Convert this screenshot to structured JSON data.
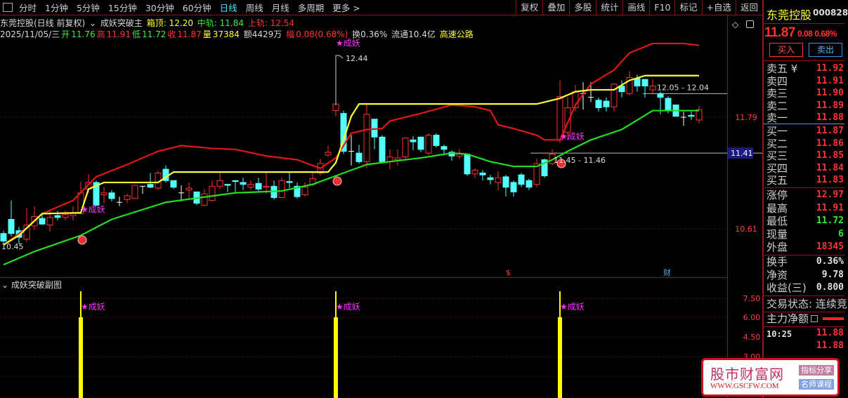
{
  "toolbar": {
    "periods": [
      "分时",
      "1分钟",
      "5分钟",
      "15分钟",
      "30分钟",
      "60分钟",
      "日线",
      "周线",
      "月线",
      "多周期",
      "更多 >"
    ],
    "active": "日线",
    "tools": [
      "复权",
      "叠加",
      "多股",
      "统计",
      "画线",
      "F10",
      "标记",
      "+自选",
      "返回"
    ]
  },
  "info": {
    "title": "东莞控股(日线 前复权)",
    "indicator": "成妖突破主",
    "box_top": "箱顶: 12.20",
    "mid": "中轨: 11.84",
    "upper": "上轨: 12.54",
    "date": "2025/11/05/三",
    "open_l": "开",
    "open": "11.76",
    "high_l": "高",
    "high": "11.91",
    "low_l": "低",
    "low": "11.72",
    "close_l": "收",
    "close": "11.87",
    "vol_l": "量",
    "vol": "37384",
    "amount": "额4429万",
    "chg_l": "幅",
    "chg": "0.08(0.68%)",
    "turnover": "换0.36%",
    "float": "流通10.4亿",
    "sector": "高速公路"
  },
  "sub": {
    "title": "成妖突破副图",
    "ticks": [
      "7.50",
      "6.00",
      "4.50",
      "3.00"
    ]
  },
  "axis": {
    "ticks": [
      "11.79",
      "10.61"
    ],
    "tag": "11.41"
  },
  "annotations": {
    "hi": "12.44",
    "lo": "10.45",
    "range1": "12.05 - 12.04",
    "range2": "11.45 - 11.46",
    "signal": "★成妖",
    "dollar": "$",
    "cai": "财"
  },
  "right": {
    "name": "东莞控股",
    "code": "000828",
    "price": "11.87",
    "chg": "0.08",
    "pct": "0.68%",
    "buy": "买入",
    "sell": "卖出",
    "asks": [
      {
        "l": "卖五 ¥",
        "v": "11.92"
      },
      {
        "l": "卖四",
        "v": "11.91"
      },
      {
        "l": "卖三",
        "v": "11.90"
      },
      {
        "l": "卖二",
        "v": "11.89"
      },
      {
        "l": "卖一",
        "v": "11.88"
      }
    ],
    "bids": [
      {
        "l": "买一",
        "v": "11.87"
      },
      {
        "l": "买二",
        "v": "11.86"
      },
      {
        "l": "买三",
        "v": "11.85"
      },
      {
        "l": "买四",
        "v": "11.84"
      },
      {
        "l": "买五",
        "v": "11.83"
      }
    ],
    "stats": [
      {
        "l": "涨停",
        "v": "12.97",
        "c": "#ff3333"
      },
      {
        "l": "最高",
        "v": "11.91",
        "c": "#ff3333"
      },
      {
        "l": "最低",
        "v": "11.72",
        "c": "#33ee33"
      },
      {
        "l": "现量",
        "v": "6",
        "c": "#33ee33"
      },
      {
        "l": "外盘",
        "v": "18345",
        "c": "#ff3333"
      }
    ],
    "fin": [
      {
        "l": "换手",
        "v": "0.36%"
      },
      {
        "l": "净资",
        "v": "9.78"
      },
      {
        "l": "收益(三)",
        "v": "0.800"
      }
    ],
    "status": "交易状态: 连续竞",
    "mainflow": "主力净额",
    "ticks": [
      {
        "t": "10:25",
        "v": "11.88"
      },
      {
        "t": "",
        "v": "11.88"
      }
    ]
  },
  "watermark": {
    "name": "股市财富网",
    "url": "WWW.GSCFW.COM",
    "b1": "指标分享",
    "b2": "名师课程"
  },
  "colors": {
    "up": "#ff3333",
    "down": "#54ffff",
    "upper": "#e01818",
    "mid": "#ffff33",
    "lower": "#22dd22"
  },
  "chart_data": {
    "type": "candlestick",
    "ohlc": [
      [
        10.56,
        10.48,
        10.59,
        10.45
      ],
      [
        10.71,
        10.56,
        10.91,
        10.53
      ],
      [
        10.59,
        10.52,
        10.63,
        10.45
      ],
      [
        10.5,
        10.65,
        10.83,
        10.47
      ],
      [
        10.64,
        10.74,
        10.85,
        10.6
      ],
      [
        10.72,
        10.66,
        10.76,
        10.65
      ],
      [
        10.65,
        10.73,
        10.8,
        10.58
      ],
      [
        10.75,
        10.73,
        10.8,
        10.7
      ],
      [
        10.73,
        10.76,
        10.8,
        10.7
      ],
      [
        10.75,
        10.77,
        10.85,
        10.7
      ],
      [
        10.77,
        10.99,
        11.11,
        10.77
      ],
      [
        11.03,
        11.1,
        11.19,
        10.99
      ],
      [
        11.1,
        10.86,
        11.12,
        10.85
      ],
      [
        10.97,
        10.99,
        11.05,
        10.88
      ],
      [
        10.99,
        10.93,
        11.02,
        10.9
      ],
      [
        10.89,
        10.89,
        10.95,
        10.85
      ],
      [
        10.92,
        10.96,
        10.98,
        10.88
      ],
      [
        10.93,
        11.07,
        11.07,
        10.93
      ],
      [
        11.06,
        11.06,
        11.06,
        10.98
      ],
      [
        11.08,
        11.05,
        11.2,
        11.04
      ],
      [
        11.04,
        11.2,
        11.22,
        11.02
      ],
      [
        11.24,
        11.12,
        11.28,
        11.1
      ],
      [
        11.12,
        11.05,
        11.12,
        11.03
      ],
      [
        10.99,
        10.99,
        11.07,
        10.9
      ],
      [
        11.02,
        11.04,
        11.1,
        10.92
      ],
      [
        11.0,
        10.88,
        11.0,
        10.86
      ],
      [
        10.86,
        10.98,
        11.03,
        10.85
      ],
      [
        10.91,
        11.06,
        11.12,
        10.9
      ],
      [
        11.06,
        11.12,
        11.2,
        11.03
      ],
      [
        11.08,
        11.07,
        11.08,
        11.0
      ],
      [
        11.12,
        11.11,
        11.12,
        11.0
      ],
      [
        11.1,
        11.08,
        11.15,
        11.02
      ],
      [
        11.05,
        11.08,
        11.12,
        11.02
      ],
      [
        11.09,
        11.03,
        11.15,
        11.0
      ],
      [
        11.05,
        11.06,
        11.2,
        10.98
      ],
      [
        11.06,
        10.94,
        11.12,
        10.92
      ],
      [
        10.94,
        11.12,
        11.15,
        10.94
      ],
      [
        11.11,
        11.1,
        11.2,
        11.04
      ],
      [
        11.06,
        10.95,
        11.1,
        10.93
      ],
      [
        10.97,
        11.05,
        11.1,
        10.95
      ],
      [
        11.08,
        11.14,
        11.2,
        11.06
      ],
      [
        11.2,
        11.3,
        11.35,
        11.17
      ],
      [
        11.39,
        11.42,
        11.49,
        11.37
      ],
      [
        11.86,
        11.93,
        12.44,
        11.8
      ],
      [
        11.83,
        11.43,
        11.86,
        11.4
      ],
      [
        11.43,
        11.43,
        11.6,
        11.28
      ],
      [
        11.41,
        11.32,
        11.5,
        11.3
      ],
      [
        11.32,
        11.82,
        11.92,
        11.25
      ],
      [
        11.77,
        11.58,
        11.77,
        11.45
      ],
      [
        11.58,
        11.32,
        11.6,
        11.3
      ],
      [
        11.32,
        11.37,
        11.45,
        11.24
      ],
      [
        11.34,
        11.36,
        11.45,
        11.28
      ],
      [
        11.37,
        11.57,
        11.57,
        11.35
      ],
      [
        11.55,
        11.53,
        11.59,
        11.44
      ],
      [
        11.58,
        11.45,
        11.58,
        11.42
      ],
      [
        11.41,
        11.6,
        11.62,
        11.39
      ],
      [
        11.6,
        11.49,
        11.62,
        11.47
      ],
      [
        11.48,
        11.45,
        11.5,
        11.4
      ],
      [
        11.42,
        11.38,
        11.44,
        11.33
      ],
      [
        11.38,
        11.41,
        11.45,
        11.35
      ],
      [
        11.4,
        11.19,
        11.4,
        11.17
      ],
      [
        11.19,
        11.23,
        11.25,
        11.15
      ],
      [
        11.2,
        11.18,
        11.23,
        11.12
      ],
      [
        11.15,
        11.13,
        11.18,
        11.08
      ],
      [
        11.1,
        11.15,
        11.22,
        11.02
      ],
      [
        11.16,
        11.05,
        11.18,
        10.95
      ],
      [
        11.1,
        11.0,
        11.12,
        10.95
      ],
      [
        11.18,
        11.08,
        11.2,
        11.05
      ],
      [
        11.12,
        11.05,
        11.14,
        11.02
      ],
      [
        11.08,
        11.3,
        11.35,
        11.05
      ],
      [
        11.34,
        11.17,
        11.35,
        11.15
      ],
      [
        11.3,
        11.4,
        11.45,
        11.28
      ],
      [
        11.55,
        12.01,
        12.18,
        11.52
      ],
      [
        11.63,
        11.89,
        12.0,
        11.55
      ],
      [
        11.89,
        12.06,
        12.13,
        11.85
      ],
      [
        12.04,
        12.04,
        12.16,
        11.87
      ],
      [
        12.0,
        12.0,
        12.16,
        11.95
      ],
      [
        11.97,
        11.89,
        12.0,
        11.85
      ],
      [
        11.96,
        11.9,
        12.0,
        11.85
      ],
      [
        11.9,
        12.14,
        12.15,
        11.85
      ],
      [
        12.12,
        12.06,
        12.18,
        12.0
      ],
      [
        12.04,
        12.21,
        12.28,
        12.02
      ],
      [
        12.2,
        12.12,
        12.24,
        12.06
      ],
      [
        12.19,
        12.12,
        12.19,
        12.0
      ],
      [
        12.08,
        12.12,
        12.19,
        12.03
      ],
      [
        12.04,
        12.0,
        12.06,
        11.82
      ],
      [
        11.99,
        11.86,
        12.01,
        11.83
      ],
      [
        11.92,
        11.8,
        11.92,
        11.8
      ],
      [
        11.79,
        11.79,
        11.85,
        11.7
      ],
      [
        11.81,
        11.8,
        11.85,
        11.76
      ],
      [
        11.76,
        11.87,
        11.91,
        11.72
      ]
    ],
    "upper": [
      [
        0,
        10.44
      ],
      [
        3,
        10.62
      ],
      [
        5,
        10.77
      ],
      [
        9,
        10.91
      ],
      [
        12,
        11.16
      ],
      [
        16,
        11.29
      ],
      [
        20,
        11.43
      ],
      [
        23,
        11.49
      ],
      [
        27,
        11.46
      ],
      [
        30,
        11.45
      ],
      [
        34,
        11.38
      ],
      [
        38,
        11.34
      ],
      [
        41,
        11.25
      ],
      [
        43,
        11.36
      ],
      [
        45,
        11.62
      ],
      [
        47,
        11.66
      ],
      [
        49,
        11.67
      ],
      [
        50,
        11.75
      ],
      [
        54,
        11.83
      ],
      [
        58,
        11.92
      ],
      [
        61,
        11.9
      ],
      [
        63,
        11.86
      ],
      [
        64,
        11.71
      ],
      [
        66,
        11.67
      ],
      [
        69,
        11.6
      ],
      [
        70,
        11.55
      ],
      [
        72,
        11.55
      ],
      [
        73,
        11.73
      ],
      [
        74,
        11.92
      ],
      [
        76,
        12.14
      ],
      [
        79,
        12.29
      ],
      [
        81,
        12.47
      ],
      [
        84,
        12.57
      ],
      [
        88,
        12.57
      ],
      [
        90,
        12.55
      ]
    ],
    "mid": [
      [
        0,
        10.44
      ],
      [
        2,
        10.54
      ],
      [
        5,
        10.77
      ],
      [
        10,
        10.78
      ],
      [
        11,
        11.03
      ],
      [
        13,
        11.1
      ],
      [
        20,
        11.1
      ],
      [
        22,
        11.21
      ],
      [
        42,
        11.21
      ],
      [
        43,
        11.31
      ],
      [
        45,
        11.8
      ],
      [
        46,
        11.93
      ],
      [
        69,
        11.93
      ],
      [
        72,
        11.99
      ],
      [
        74,
        12.06
      ],
      [
        76,
        12.08
      ],
      [
        79,
        12.08
      ],
      [
        81,
        12.18
      ],
      [
        83,
        12.23
      ],
      [
        90,
        12.23
      ]
    ],
    "lower": [
      [
        0,
        10.23
      ],
      [
        4,
        10.37
      ],
      [
        10,
        10.54
      ],
      [
        14,
        10.71
      ],
      [
        21,
        10.89
      ],
      [
        30,
        10.99
      ],
      [
        36,
        11.01
      ],
      [
        40,
        11.08
      ],
      [
        43,
        11.17
      ],
      [
        47,
        11.29
      ],
      [
        50,
        11.32
      ],
      [
        54,
        11.36
      ],
      [
        58,
        11.41
      ],
      [
        60,
        11.4
      ],
      [
        63,
        11.32
      ],
      [
        66,
        11.27
      ],
      [
        69,
        11.27
      ],
      [
        71,
        11.34
      ],
      [
        73,
        11.43
      ],
      [
        76,
        11.55
      ],
      [
        80,
        11.66
      ],
      [
        84,
        11.86
      ],
      [
        87,
        11.86
      ],
      [
        90,
        11.86
      ]
    ],
    "signals": [
      10,
      43,
      72
    ],
    "sub_values": {
      "thick": 6,
      "thin": 8
    },
    "ylim": [
      10.2,
      12.65
    ]
  }
}
